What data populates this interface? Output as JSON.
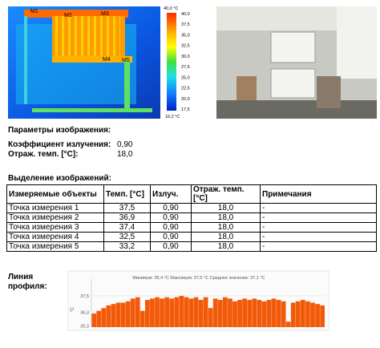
{
  "thermal_image": {
    "markers": [
      "M1",
      "M2",
      "M3",
      "M4",
      "M5"
    ],
    "scale_top": "40,0 °C",
    "scale_labels": [
      "40,0",
      "37,5",
      "35,0",
      "32,5",
      "30,0",
      "27,5",
      "25,0",
      "22,5",
      "20,0",
      "17,5"
    ],
    "scale_bottom": "16,2 °C"
  },
  "image_parameters": {
    "title": "Параметры изображения:",
    "rows": [
      [
        "Коэффициент излучения:",
        "0,90"
      ],
      [
        "Отраж. темп. [°C]:",
        "18,0"
      ]
    ]
  },
  "selection": {
    "title": "Выделение изображений:",
    "table": {
      "header": [
        "Измеряемые объекты",
        "Темп. [°C]",
        "Излуч.",
        "Отраж. темп. [°C]",
        "Примечания"
      ],
      "rows": [
        [
          "Точка измерения 1",
          "37,5",
          "0,90",
          "18,0",
          "-"
        ],
        [
          "Точка измерения 2",
          "36,9",
          "0,90",
          "18,0",
          "-"
        ],
        [
          "Точка измерения 3",
          "37,4",
          "0,90",
          "18,0",
          "-"
        ],
        [
          "Точка измерения 4",
          "32,5",
          "0,90",
          "18,0",
          "-"
        ],
        [
          "Точка измерения 5",
          "33,2",
          "0,90",
          "18,0",
          "-"
        ]
      ]
    }
  },
  "profile": {
    "label": "Линия профиля:",
    "chart_data": {
      "type": "bar",
      "summary": "Минимум: 35,4 °C  Максимум: 37,5 °C  Среднее значение: 37,1 °C",
      "y_label": "°C",
      "color": "#f25a0a",
      "ylim": [
        35.2,
        38.5
      ],
      "yticks": [
        {
          "value": 35.3,
          "label": "35,3"
        },
        {
          "value": 36.3,
          "label": "36,3"
        },
        {
          "value": 37.5,
          "label": "37,5"
        }
      ],
      "values": [
        36.2,
        36.4,
        36.6,
        36.8,
        36.9,
        37.0,
        37.0,
        37.1,
        37.3,
        37.4,
        36.4,
        37.2,
        37.3,
        37.4,
        37.3,
        37.4,
        37.3,
        37.4,
        37.5,
        37.4,
        37.3,
        37.4,
        37.2,
        37.4,
        36.6,
        37.3,
        37.2,
        37.4,
        37.3,
        37.1,
        37.2,
        37.3,
        37.2,
        37.3,
        37.2,
        37.1,
        37.2,
        37.3,
        37.2,
        37.1,
        35.6,
        37.0,
        37.1,
        37.2,
        37.1,
        37.0,
        36.9,
        36.8
      ]
    }
  }
}
